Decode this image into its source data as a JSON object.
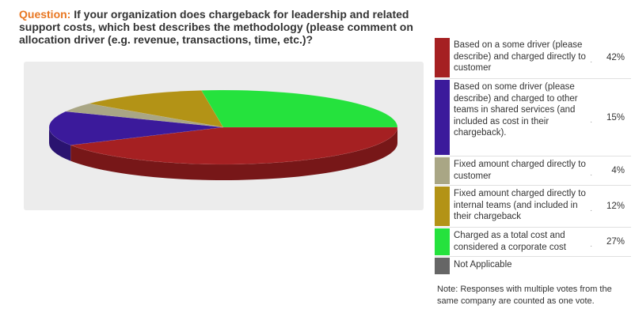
{
  "question": {
    "label": "Question:",
    "text": "If your organization does chargeback for leadership and related support costs, which best describes the methodology (please comment on allocation driver (e.g. revenue, transactions, time, etc.)?"
  },
  "chart_data": {
    "type": "pie",
    "title": "",
    "legend_position": "right",
    "slices": [
      {
        "label": "Based on a some driver (please describe) and charged directly to customer",
        "value": 42,
        "display": "42%",
        "color": "#a52022"
      },
      {
        "label": "Based on some driver (please describe) and charged to other teams in shared services (and included as cost in their chargeback).",
        "value": 15,
        "display": "15%",
        "color": "#3b1a9b"
      },
      {
        "label": "Fixed amount charged directly to customer",
        "value": 4,
        "display": "4%",
        "color": "#a9a685"
      },
      {
        "label": "Fixed amount charged directly to internal teams (and included in their chargeback",
        "value": 12,
        "display": "12%",
        "color": "#b39316"
      },
      {
        "label": "Charged as a total cost and considered a corporate cost",
        "value": 27,
        "display": "27%",
        "color": "#25e23d"
      },
      {
        "label": "Not Applicable",
        "value": 0,
        "display": "",
        "color": "#666666"
      }
    ]
  },
  "note": "Note: Responses with multiple votes from the same company are counted as one vote."
}
